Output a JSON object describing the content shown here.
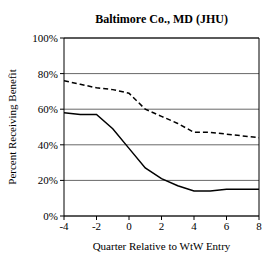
{
  "chart_data": {
    "type": "line",
    "title": "Baltimore Co., MD (JHU)",
    "x_label": "Quarter Relative to WtW Entry",
    "y_label": "Percent Receiving Benefit",
    "x": [
      -4,
      -3,
      -2,
      -1,
      0,
      1,
      2,
      3,
      4,
      5,
      6,
      7,
      8
    ],
    "series": [
      {
        "color": "#000000",
        "line_style": "solid",
        "values": [
          58,
          57,
          57,
          49,
          38,
          27,
          21,
          17,
          14,
          14,
          15,
          15,
          15
        ]
      },
      {
        "color": "#000000",
        "line_style": "dashed",
        "values": [
          76,
          74,
          72,
          71,
          69,
          60,
          56,
          52,
          47,
          47,
          46,
          45,
          44
        ]
      }
    ],
    "xlim": [
      -4,
      8
    ],
    "xticks": [
      -4,
      -2,
      0,
      2,
      4,
      6,
      8
    ],
    "ylim": [
      0,
      100
    ],
    "yticks": [
      {
        "value": 0,
        "label": "0%"
      },
      {
        "value": 20,
        "label": "20%"
      },
      {
        "value": 40,
        "label": "40%"
      },
      {
        "value": 60,
        "label": "60%"
      },
      {
        "value": 80,
        "label": "80%"
      },
      {
        "value": 100,
        "label": "100%"
      }
    ],
    "grid": true
  }
}
